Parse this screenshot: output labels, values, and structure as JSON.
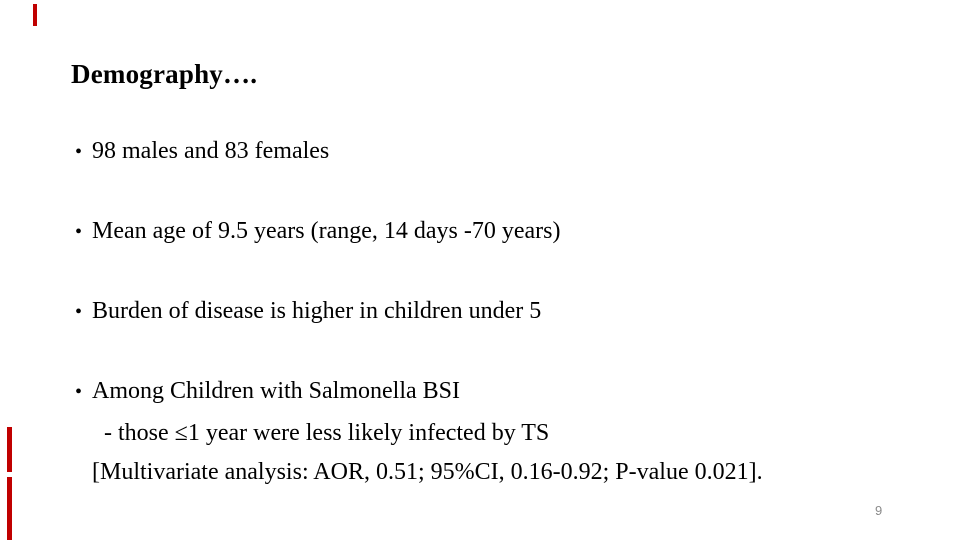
{
  "slide": {
    "title": "Demography….",
    "bullet_glyph": "•",
    "bullets": [
      {
        "text": "98 males and 83 females"
      },
      {
        "text": "Mean age of 9.5 years (range, 14 days -70 years)"
      },
      {
        "text": "Burden of disease is higher in children under 5"
      },
      {
        "text": "Among Children with Salmonella BSI",
        "sub_lines": [
          "- those ≤1 year were less likely infected by TS",
          "[Multivariate analysis: AOR, 0.51; 95%CI, 0.16-0.92; P-value 0.021]."
        ]
      }
    ],
    "page_number": "9",
    "colors": {
      "background": "#ffffff",
      "text": "#000000",
      "page_number": "#8a8a8a",
      "pen_annotation": "#c00000"
    }
  }
}
